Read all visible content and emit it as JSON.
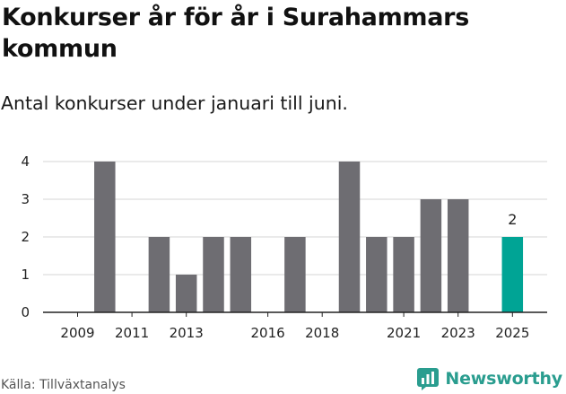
{
  "header": {
    "title": "Konkurser år för år i Surahammars kommun",
    "subtitle": "Antal konkurser under januari till juni."
  },
  "footer": {
    "source": "Källa: Tillväxtanalys",
    "brand": "Newsworthy",
    "brand_logo_icon": "bar-chart-logo-icon"
  },
  "colors": {
    "bar": "#6e6d72",
    "highlight": "#00a495",
    "grid": "#d6d6d6",
    "axis": "#222222",
    "brand": "#2a9d8f"
  },
  "chart_data": {
    "type": "bar",
    "categories": [
      "2009",
      "2010",
      "2011",
      "2012",
      "2013",
      "2014",
      "2015",
      "2016",
      "2017",
      "2018",
      "2019",
      "2020",
      "2021",
      "2022",
      "2023",
      "2024",
      "2025"
    ],
    "values": [
      0,
      4,
      0,
      2,
      1,
      2,
      2,
      0,
      2,
      0,
      4,
      2,
      2,
      3,
      3,
      0,
      2
    ],
    "x_tick_labels": [
      "2009",
      "2011",
      "2013",
      "2016",
      "2018",
      "2021",
      "2023",
      "2025"
    ],
    "highlight_category": "2025",
    "data_labels": [
      {
        "category": "2025",
        "label": "2"
      }
    ],
    "ylim": [
      0,
      4
    ],
    "y_ticks": [
      0,
      1,
      2,
      3,
      4
    ],
    "grid": "horizontal",
    "legend": "none",
    "xlabel": "",
    "ylabel": ""
  }
}
